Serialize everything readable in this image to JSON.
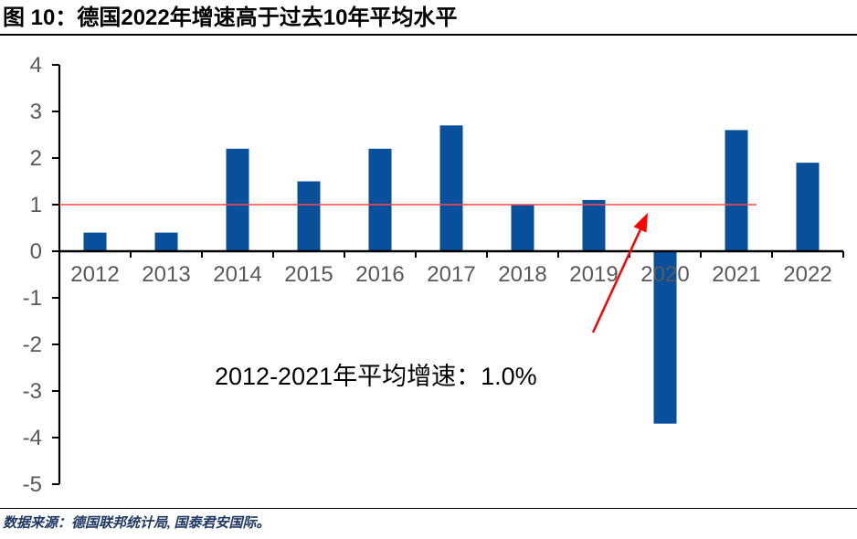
{
  "figure": {
    "title": "图 10：德国2022年增速高于过去10年平均水平",
    "source_note": "数据来源：德国联邦统计局, 国泰君安国际。"
  },
  "chart_data": {
    "type": "bar",
    "title": "图 10：德国2022年增速高于过去10年平均水平",
    "categories": [
      "2012",
      "2013",
      "2014",
      "2015",
      "2016",
      "2017",
      "2018",
      "2019",
      "2020",
      "2021",
      "2022"
    ],
    "values": [
      0.4,
      0.4,
      2.2,
      1.5,
      2.2,
      2.7,
      1.0,
      1.1,
      -3.7,
      2.6,
      1.9
    ],
    "xlabel": "",
    "ylabel": "",
    "ylim": [
      -5,
      4
    ],
    "ytick_step": 1,
    "grid": false,
    "legend": "none",
    "bar_color": "#084F9C",
    "axis_color": "#000000",
    "tick_label_color": "#595959",
    "reference_line": {
      "value": 1.0,
      "color": "#FF4A4A",
      "from_category": "2012",
      "to_category": "2021"
    },
    "annotation": {
      "text": "2012-2021年平均增速：1.0%",
      "color": "#000000"
    },
    "arrow": {
      "color": "#FF0000"
    }
  }
}
